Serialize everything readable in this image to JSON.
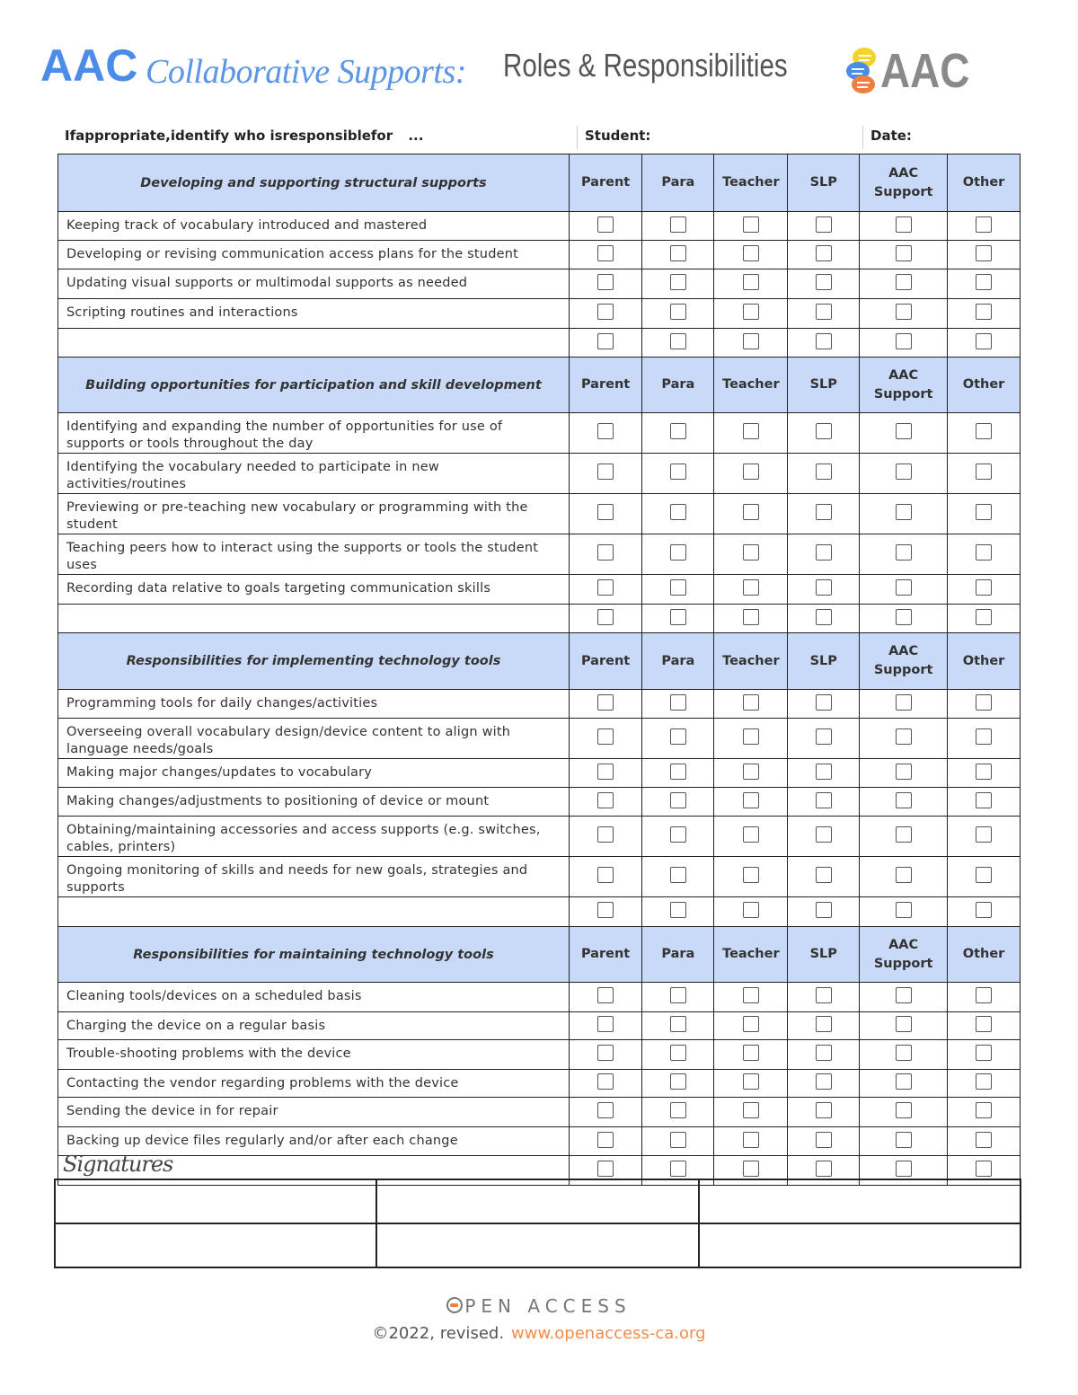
{
  "header": {
    "aac": "AAC",
    "collab": "Collaborative Supports:",
    "roles": "Roles & Responsibilities",
    "logo_text": "AAC"
  },
  "intro": {
    "prompt": "Ifappropriate,identify who isresponsiblefor",
    "ellipsis": "...",
    "student_label": "Student:",
    "date_label": "Date:"
  },
  "roles": [
    "Parent",
    "Para",
    "Teacher",
    "SLP",
    "AAC Support",
    "Other"
  ],
  "sections": [
    {
      "title": "Developing and supporting structural supports",
      "items": [
        "Keeping track of vocabulary introduced and mastered",
        "Developing or revising communication access plans for the student",
        "Updating visual supports or multimodal supports as needed",
        "Scripting routines and interactions",
        ""
      ]
    },
    {
      "title": "Building opportunities for participation and skill development",
      "items": [
        "Identifying and expanding the number of opportunities for use of supports or tools throughout the day",
        "Identifying the vocabulary needed to participate in new activities/routines",
        "Previewing or pre-teaching new vocabulary or programming with the student",
        "Teaching peers how to interact using the supports or tools the student uses",
        "Recording data relative to goals targeting communication skills",
        ""
      ]
    },
    {
      "title": "Responsibilities for implementing technology tools",
      "items": [
        "Programming tools for daily changes/activities",
        "Overseeing overall vocabulary design/device content to align with language needs/goals",
        "Making major changes/updates to vocabulary",
        "Making changes/adjustments to positioning of device or mount",
        "Obtaining/maintaining accessories and access supports (e.g. switches, cables, printers)",
        "Ongoing monitoring of skills and needs for new goals, strategies and supports",
        ""
      ]
    },
    {
      "title": "Responsibilities for maintaining technology tools",
      "items": [
        "Cleaning tools/devices on a scheduled basis",
        "Charging the device on a regular basis",
        "Trouble-shooting problems with the device",
        "Contacting the vendor regarding problems with the device",
        "Sending the device in for repair",
        "Backing up device files regularly and/or after each change",
        ""
      ]
    }
  ],
  "signatures": {
    "label": "Signatures"
  },
  "footer": {
    "org": "PEN ACCESS",
    "copyright": "©2022, revised.",
    "url": "www.openaccess-ca.org"
  },
  "colors": {
    "header_fill": "#c9daf8",
    "title_blue": "#4a8ce8",
    "url_orange": "#f48c4a"
  }
}
